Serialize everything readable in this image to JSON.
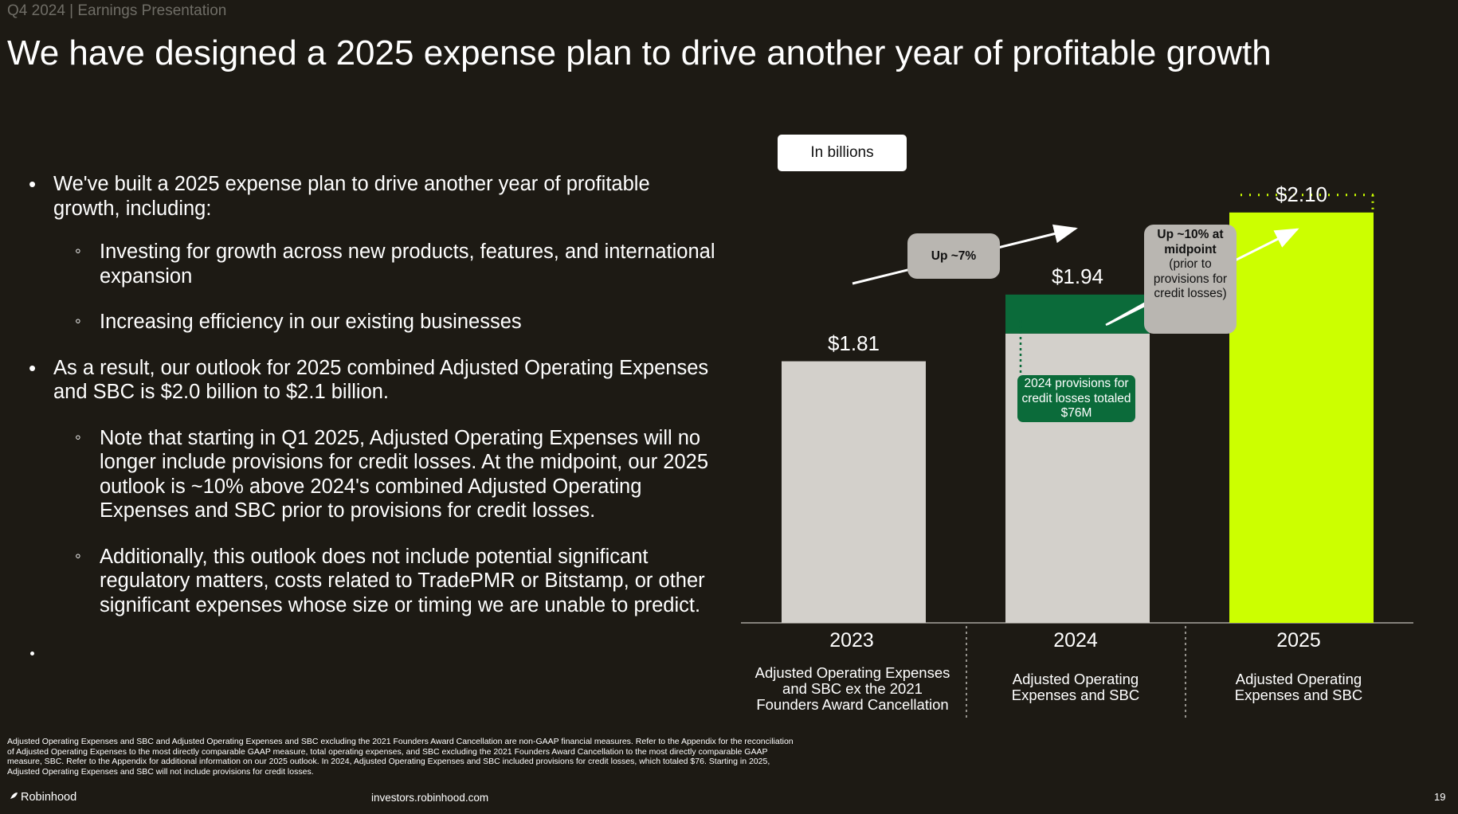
{
  "header": {
    "pre_title": "Q4 2024 | Earnings Presentation",
    "title": "We have designed a 2025 expense plan to drive another year of profitable growth"
  },
  "bullets": [
    {
      "level": 1,
      "marker": "•",
      "text": "We've built a 2025 expense plan to drive another year of profitable growth, including:"
    },
    {
      "level": 2,
      "marker": "◦",
      "text": "Investing for growth across new products, features, and international expansion"
    },
    {
      "level": 2,
      "marker": "◦",
      "text": "Increasing efficiency in our existing businesses"
    },
    {
      "level": 1,
      "marker": "•",
      "text": "As a result, our outlook for 2025 combined Adjusted Operating Expenses and SBC is $2.0 billion to $2.1 billion."
    },
    {
      "level": 2,
      "marker": "◦",
      "text": "Note that starting in Q1 2025, Adjusted Operating Expenses will no longer include provisions for credit losses. At the midpoint, our 2025 outlook is ~10% above 2024's combined Adjusted Operating Expenses and SBC prior to provisions for credit losses."
    },
    {
      "level": 2,
      "marker": "◦",
      "text": "Additionally, this outlook does not include potential significant regulatory matters, costs related to TradePMR or Bitstamp, or other significant expenses whose size or timing we are unable to predict."
    }
  ],
  "chart_data": {
    "type": "bar",
    "unit_label": "In billions",
    "categories": [
      "2023",
      "2024",
      "2025"
    ],
    "category_descriptions": [
      "Adjusted Operating Expenses and SBC ex the 2021 Founders Award Cancellation",
      "Adjusted Operating Expenses and SBC",
      "Adjusted Operating Expenses and SBC"
    ],
    "values": [
      1.81,
      1.94,
      2.1
    ],
    "value_labels": [
      "$1.81",
      "$1.94",
      "$2.10"
    ],
    "segments_2024": {
      "base": 1.864,
      "provisions_for_credit_losses": 0.076
    },
    "bar_colors": [
      "#d3d0cb",
      "#d3d0cb",
      "#ccff00"
    ],
    "provision_color": "#0b6b3a",
    "annotations": {
      "growth_2024": "Up ~7%",
      "growth_2025": {
        "bold": "Up ~10% at midpoint",
        "normal": "(prior to provisions for credit losses)"
      },
      "provisions_note": "2024 provisions for credit losses totaled $76M"
    }
  },
  "footer": {
    "footnote": "Adjusted Operating Expenses and SBC and Adjusted Operating Expenses and SBC excluding the 2021 Founders Award Cancellation are non-GAAP financial measures. Refer to the Appendix for the reconciliation of Adjusted Operating Expenses to the most directly comparable GAAP measure, total operating expenses, and SBC excluding the 2021 Founders Award Cancellation to the most directly comparable GAAP measure, SBC. Refer to the Appendix for additional information on our 2025 outlook. In 2024, Adjusted Operating Expenses and SBC included provisions for credit losses, which totaled $76. Starting in 2025, Adjusted Operating Expenses and SBC will not include provisions for credit losses.",
    "brand": "Robinhood",
    "url": "investors.robinhood.com",
    "page_number": "19"
  }
}
